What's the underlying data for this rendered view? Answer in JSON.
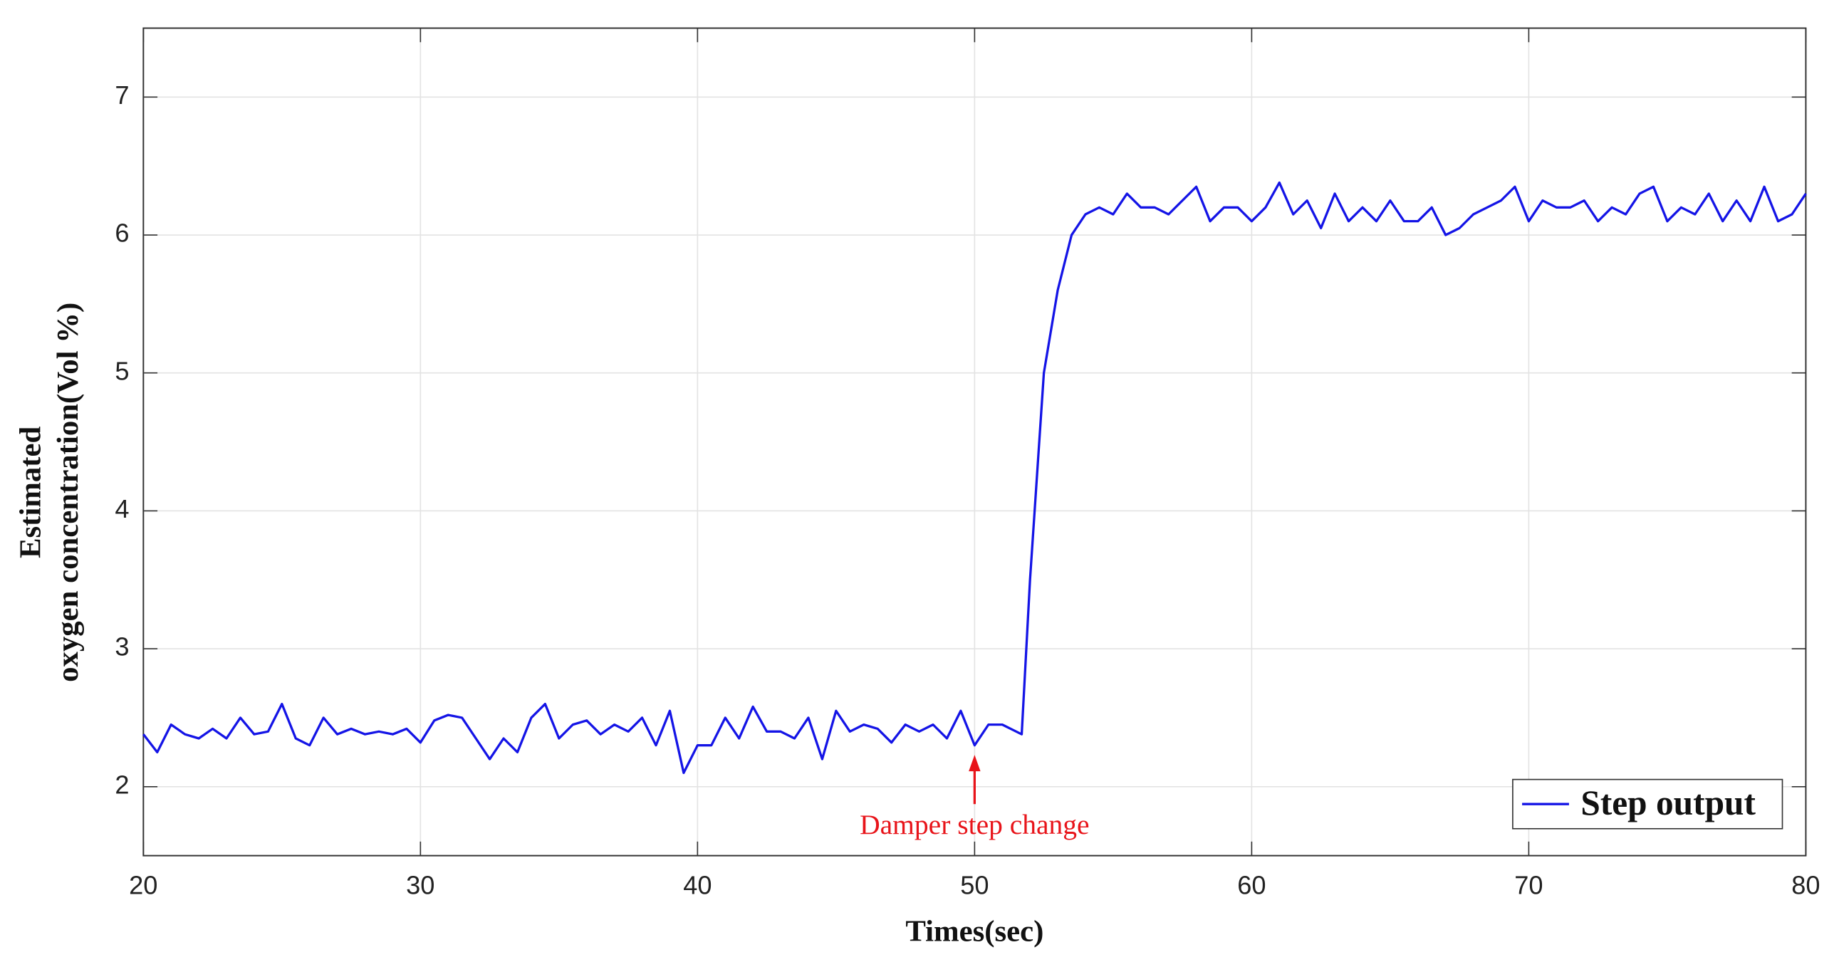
{
  "chart_data": {
    "type": "line",
    "xlabel": "Times(sec)",
    "ylabel": [
      "Estimated",
      "oxygen concentration(Vol %)"
    ],
    "x": [
      20,
      20.5,
      21,
      21.5,
      22,
      22.5,
      23,
      23.5,
      24,
      24.5,
      25,
      25.5,
      26,
      26.5,
      27,
      27.5,
      28,
      28.5,
      29,
      29.5,
      30,
      30.5,
      31,
      31.5,
      32,
      32.5,
      33,
      33.5,
      34,
      34.5,
      35,
      35.5,
      36,
      36.5,
      37,
      37.5,
      38,
      38.5,
      39,
      39.5,
      40,
      40.5,
      41,
      41.5,
      42,
      42.5,
      43,
      43.5,
      44,
      44.5,
      45,
      45.5,
      46,
      46.5,
      47,
      47.5,
      48,
      48.5,
      49,
      49.5,
      50,
      50.5,
      51,
      51.5,
      51.7,
      52,
      52.5,
      53,
      53.5,
      54,
      54.5,
      55,
      55.5,
      56,
      56.5,
      57,
      57.5,
      58,
      58.5,
      59,
      59.5,
      60,
      60.5,
      61,
      61.5,
      62,
      62.5,
      63,
      63.5,
      64,
      64.5,
      65,
      65.5,
      66,
      66.5,
      67,
      67.5,
      68,
      68.5,
      69,
      69.5,
      70,
      70.5,
      71,
      71.5,
      72,
      72.5,
      73,
      73.5,
      74,
      74.5,
      75,
      75.5,
      76,
      76.5,
      77,
      77.5,
      78,
      78.5,
      79,
      79.5,
      80
    ],
    "series": [
      {
        "name": "Step output",
        "color": "#1414e6",
        "values": [
          2.38,
          2.25,
          2.45,
          2.38,
          2.35,
          2.42,
          2.35,
          2.5,
          2.38,
          2.4,
          2.6,
          2.35,
          2.3,
          2.5,
          2.38,
          2.42,
          2.38,
          2.4,
          2.38,
          2.42,
          2.32,
          2.48,
          2.52,
          2.5,
          2.35,
          2.2,
          2.35,
          2.25,
          2.5,
          2.6,
          2.35,
          2.45,
          2.48,
          2.38,
          2.45,
          2.4,
          2.5,
          2.3,
          2.55,
          2.1,
          2.3,
          2.3,
          2.5,
          2.35,
          2.58,
          2.4,
          2.4,
          2.35,
          2.5,
          2.2,
          2.55,
          2.4,
          2.45,
          2.42,
          2.32,
          2.45,
          2.4,
          2.45,
          2.35,
          2.55,
          2.3,
          2.45,
          2.45,
          2.4,
          2.38,
          3.5,
          5.0,
          5.6,
          6.0,
          6.15,
          6.2,
          6.15,
          6.3,
          6.2,
          6.2,
          6.15,
          6.25,
          6.35,
          6.1,
          6.2,
          6.2,
          6.1,
          6.2,
          6.38,
          6.15,
          6.25,
          6.05,
          6.3,
          6.1,
          6.2,
          6.1,
          6.25,
          6.1,
          6.1,
          6.2,
          6.0,
          6.05,
          6.15,
          6.2,
          6.25,
          6.35,
          6.1,
          6.25,
          6.2,
          6.2,
          6.25,
          6.1,
          6.2,
          6.15,
          6.3,
          6.35,
          6.1,
          6.2,
          6.15,
          6.3,
          6.1,
          6.25,
          6.1,
          6.35,
          6.1,
          6.15,
          6.3
        ]
      }
    ],
    "xlim": [
      20,
      80
    ],
    "xticks": [
      20,
      30,
      40,
      50,
      60,
      70,
      80
    ],
    "ylim": [
      1.5,
      7.5
    ],
    "yticks": [
      2,
      3,
      4,
      5,
      6,
      7
    ],
    "grid": true,
    "legend": "lower right",
    "annotation": {
      "text": "Damper step change",
      "x": 50,
      "color": "#e8141a"
    }
  }
}
